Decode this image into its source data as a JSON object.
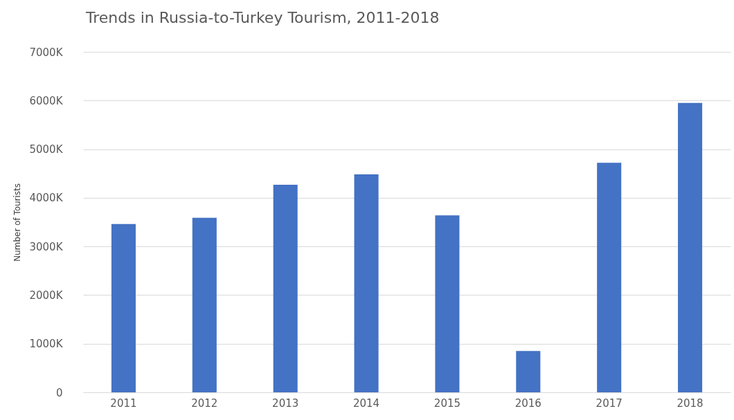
{
  "chart_data": {
    "type": "bar",
    "title": "Trends in Russia-to-Turkey Tourism, 2011-2018",
    "ylabel": "Number of Tourists",
    "categories": [
      "2011",
      "2012",
      "2013",
      "2014",
      "2015",
      "2016",
      "2017",
      "2018"
    ],
    "values": [
      3460,
      3590,
      4270,
      4480,
      3640,
      850,
      4720,
      5950
    ],
    "color": "#4472c4",
    "ylim": [
      0,
      7000
    ],
    "yticks": [
      0,
      {
        "value": 1000,
        "label": "1000K"
      },
      {
        "value": 2000,
        "label": "2000K"
      },
      {
        "value": 3000,
        "label": "3000K"
      },
      {
        "value": 4000,
        "label": "4000K"
      },
      {
        "value": 5000,
        "label": "5000K"
      },
      {
        "value": 6000,
        "label": "6000K"
      },
      {
        "value": 7000,
        "label": "7000K"
      }
    ],
    "grid": "y"
  }
}
